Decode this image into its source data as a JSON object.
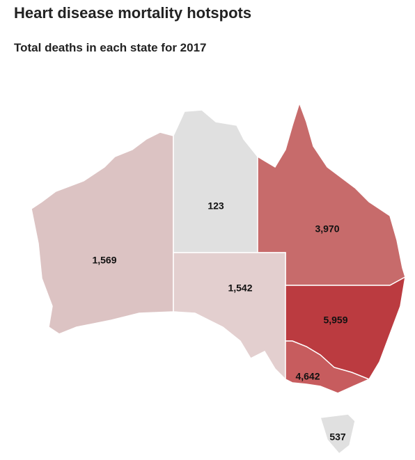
{
  "chart_data": {
    "type": "choropleth",
    "title": "Heart disease mortality hotspots",
    "subtitle": "Total deaths in each state for 2017",
    "values": [
      1569,
      123,
      3970,
      1542,
      5959,
      4642,
      537
    ],
    "value_labels": [
      "1,569",
      "123",
      "3,970",
      "1,542",
      "5,959",
      "4,642",
      "537"
    ],
    "colors": [
      "#dcc3c3",
      "#e0e0e0",
      "#c76b6b",
      "#e3cfcf",
      "#bb3b40",
      "#c75c5e",
      "#e0e0e0"
    ]
  }
}
